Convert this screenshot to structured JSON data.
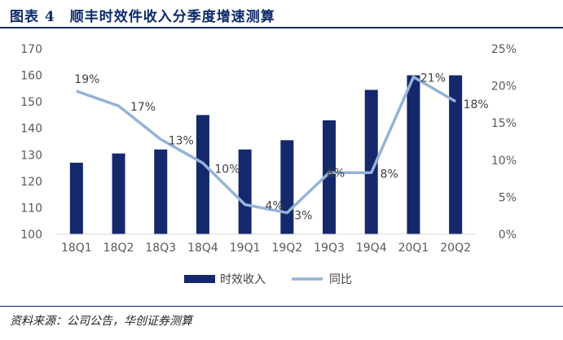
{
  "title": "图表 4　顺丰时效件收入分季度增速测算",
  "source": "资料来源：公司公告，华创证券测算",
  "colors": {
    "bar": "#14286b",
    "line": "#95b3d7",
    "title": "#0d2a6b"
  },
  "chart_data": {
    "type": "bar+line",
    "categories": [
      "18Q1",
      "18Q2",
      "18Q3",
      "18Q4",
      "19Q1",
      "19Q2",
      "19Q3",
      "19Q4",
      "20Q1",
      "20Q2"
    ],
    "series": [
      {
        "name": "时效收入",
        "type": "bar",
        "axis": "left",
        "values": [
          127,
          130.5,
          132,
          145,
          132,
          135.5,
          143,
          154.5,
          160,
          160
        ]
      },
      {
        "name": "同比",
        "type": "line",
        "axis": "right",
        "values": [
          19.3,
          17.3,
          12.8,
          9.6,
          4.0,
          2.9,
          8.3,
          8.3,
          21.2,
          17.9
        ],
        "labels": [
          "19%",
          "17%",
          "13%",
          "10%",
          "4%",
          "3%",
          "8%",
          "8%",
          "21%",
          "18%"
        ]
      }
    ],
    "y_left": {
      "min": 100,
      "max": 170,
      "ticks": [
        100,
        110,
        120,
        130,
        140,
        150,
        160,
        170
      ]
    },
    "y_right": {
      "min": 0,
      "max": 25,
      "ticks": [
        "0%",
        "5%",
        "10%",
        "15%",
        "20%",
        "25%"
      ]
    },
    "legend": [
      "时效收入",
      "同比"
    ],
    "legend_position": "bottom"
  }
}
